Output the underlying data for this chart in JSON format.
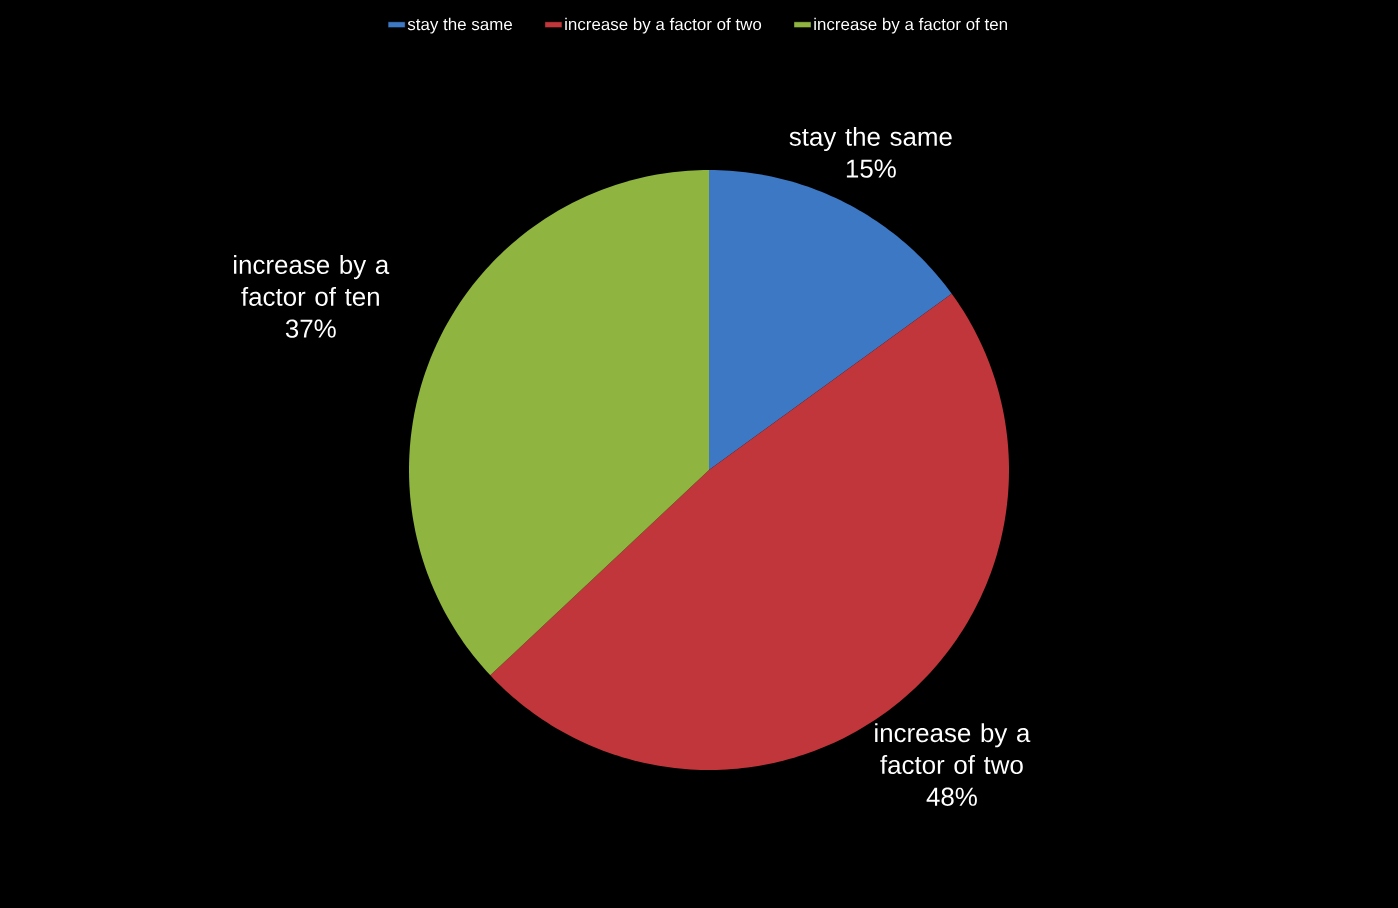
{
  "chart_data": {
    "type": "pie",
    "categories": [
      "stay the same",
      "increase by a factor of two",
      "increase by a factor of ten"
    ],
    "values": [
      15,
      48,
      37
    ],
    "colors": [
      "#3d78c4",
      "#c0363a",
      "#8fb440"
    ],
    "value_labels": [
      "15%",
      "48%",
      "37%"
    ],
    "legend": "top"
  }
}
